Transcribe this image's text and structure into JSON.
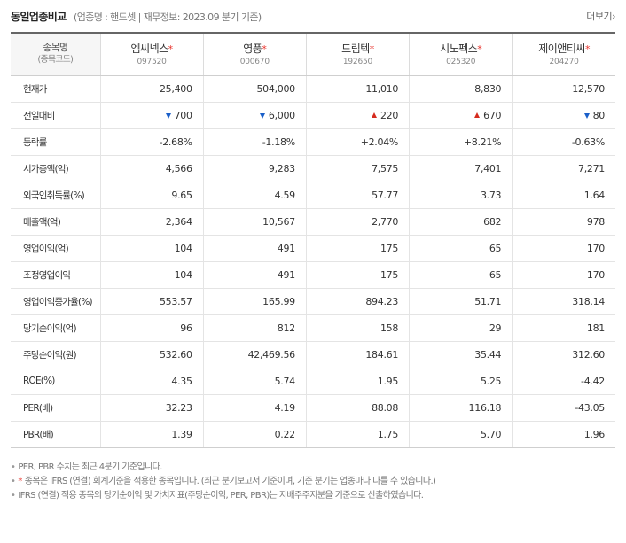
{
  "header": {
    "title": "동일업종비교",
    "subtitle": "(업종명 : 핸드셋 | 재무정보: 2023.09 분기 기준)",
    "more_label": "더보기",
    "more_icon": "chevron-right-icon"
  },
  "table": {
    "header_label": "종목명",
    "header_sub": "(종목코드)",
    "companies": [
      {
        "name": "엠씨넥스",
        "code": "097520",
        "star": "*"
      },
      {
        "name": "영풍",
        "code": "000670",
        "star": "*"
      },
      {
        "name": "드림텍",
        "code": "192650",
        "star": "*"
      },
      {
        "name": "시노펙스",
        "code": "025320",
        "star": "*"
      },
      {
        "name": "제이앤티씨",
        "code": "204270",
        "star": "*"
      }
    ],
    "rows": [
      {
        "label": "현재가",
        "values": [
          "25,400",
          "504,000",
          "11,010",
          "8,830",
          "12,570"
        ]
      },
      {
        "label": "전일대비",
        "values": [
          "700",
          "6,000",
          "220",
          "670",
          "80"
        ],
        "dirs": [
          "down",
          "down",
          "up",
          "up",
          "down"
        ]
      },
      {
        "label": "등락률",
        "values": [
          "-2.68%",
          "-1.18%",
          "+2.04%",
          "+8.21%",
          "-0.63%"
        ],
        "dirs": [
          "down",
          "down",
          "up",
          "up",
          "down"
        ]
      },
      {
        "label": "시가총액(억)",
        "values": [
          "4,566",
          "9,283",
          "7,575",
          "7,401",
          "7,271"
        ]
      },
      {
        "label": "외국인취득률(%)",
        "values": [
          "9.65",
          "4.59",
          "57.77",
          "3.73",
          "1.64"
        ]
      },
      {
        "label": "매출액(억)",
        "values": [
          "2,364",
          "10,567",
          "2,770",
          "682",
          "978"
        ]
      },
      {
        "label": "영업이익(억)",
        "values": [
          "104",
          "491",
          "175",
          "65",
          "170"
        ]
      },
      {
        "label": "조정영업이익",
        "values": [
          "104",
          "491",
          "175",
          "65",
          "170"
        ]
      },
      {
        "label": "영업이익증가율(%)",
        "values": [
          "553.57",
          "165.99",
          "894.23",
          "51.71",
          "318.14"
        ]
      },
      {
        "label": "당기순이익(억)",
        "values": [
          "96",
          "812",
          "158",
          "29",
          "181"
        ]
      },
      {
        "label": "주당순이익(원)",
        "values": [
          "532.60",
          "42,469.56",
          "184.61",
          "35.44",
          "312.60"
        ]
      },
      {
        "label": "ROE(%)",
        "values": [
          "4.35",
          "5.74",
          "1.95",
          "5.25",
          "-4.42"
        ]
      },
      {
        "label": "PER(배)",
        "values": [
          "32.23",
          "4.19",
          "88.08",
          "116.18",
          "-43.05"
        ]
      },
      {
        "label": "PBR(배)",
        "values": [
          "1.39",
          "0.22",
          "1.75",
          "5.70",
          "1.96"
        ]
      }
    ]
  },
  "notes": {
    "bullet": "•",
    "star_bullet": "•",
    "star_mark": "*",
    "lines": [
      "PER, PBR 수치는 최근 4분기 기준입니다.",
      "종목은 IFRS (연결) 회계기준을 적용한 종목입니다. (최근 분기보고서 기준이며, 기준 분기는 업종마다 다를 수 있습니다.)",
      "IFRS (연결) 적용 종목의 당기순이익 및 가치지표(주당순이익, PER, PBR)는 지배주주지분을 기준으로 산출하였습니다."
    ]
  },
  "colors": {
    "up": "#d52b1e",
    "down": "#1a5fc9",
    "star": "#e8332c"
  }
}
